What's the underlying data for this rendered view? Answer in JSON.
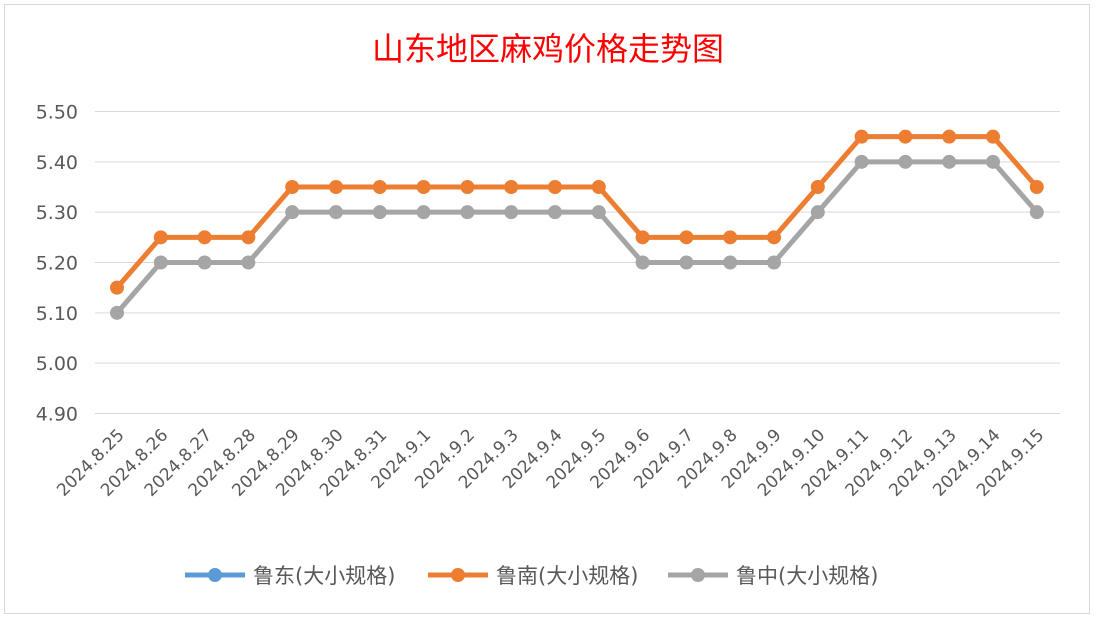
{
  "chart_data": {
    "type": "line",
    "title": "山东地区麻鸡价格走势图",
    "xlabel": "",
    "ylabel": "",
    "ylim": [
      4.9,
      5.5
    ],
    "yticks": [
      "5.50",
      "5.40",
      "5.30",
      "5.20",
      "5.10",
      "5.00",
      "4.90"
    ],
    "grid": true,
    "legend_position": "bottom",
    "categories": [
      "2024.8.25",
      "2024.8.26",
      "2024.8.27",
      "2024.8.28",
      "2024.8.29",
      "2024.8.30",
      "2024.8.31",
      "2024.9.1",
      "2024.9.2",
      "2024.9.3",
      "2024.9.4",
      "2024.9.5",
      "2024.9.6",
      "2024.9.7",
      "2024.9.8",
      "2024.9.9",
      "2024.9.10",
      "2024.9.11",
      "2024.9.12",
      "2024.9.13",
      "2024.9.14",
      "2024.9.15"
    ],
    "series": [
      {
        "name": "鲁东(大小规格)",
        "color": "#5b9bd5",
        "values": [
          null,
          null,
          null,
          null,
          null,
          null,
          null,
          null,
          null,
          null,
          null,
          null,
          null,
          null,
          null,
          null,
          null,
          null,
          null,
          null,
          null,
          null
        ]
      },
      {
        "name": "鲁南(大小规格)",
        "color": "#ed7d31",
        "values": [
          5.15,
          5.25,
          5.25,
          5.25,
          5.35,
          5.35,
          5.35,
          5.35,
          5.35,
          5.35,
          5.35,
          5.35,
          5.25,
          5.25,
          5.25,
          5.25,
          5.35,
          5.45,
          5.45,
          5.45,
          5.45,
          5.35
        ]
      },
      {
        "name": "鲁中(大小规格)",
        "color": "#a5a5a5",
        "values": [
          5.1,
          5.2,
          5.2,
          5.2,
          5.3,
          5.3,
          5.3,
          5.3,
          5.3,
          5.3,
          5.3,
          5.3,
          5.2,
          5.2,
          5.2,
          5.2,
          5.3,
          5.4,
          5.4,
          5.4,
          5.4,
          5.3
        ]
      }
    ]
  }
}
